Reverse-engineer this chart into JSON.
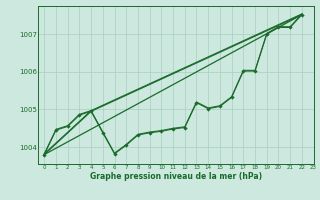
{
  "bg_color": "#cce8df",
  "line_color": "#1a6b2a",
  "grid_color": "#aacfbf",
  "xlabel": "Graphe pression niveau de la mer (hPa)",
  "ylabel_ticks": [
    1004,
    1005,
    1006,
    1007
  ],
  "xlim": [
    -0.5,
    23
  ],
  "ylim": [
    1003.55,
    1007.75
  ],
  "main_x": [
    0,
    1,
    2,
    3,
    4,
    5,
    6,
    7,
    8,
    9,
    10,
    11,
    12,
    13,
    14,
    15,
    16,
    17,
    18,
    19,
    20,
    21,
    22
  ],
  "main_y": [
    1003.8,
    1004.45,
    1004.55,
    1004.85,
    1004.95,
    1004.38,
    1003.82,
    1004.05,
    1004.32,
    1004.38,
    1004.42,
    1004.48,
    1004.52,
    1005.18,
    1005.02,
    1005.08,
    1005.32,
    1006.02,
    1006.02,
    1007.0,
    1007.18,
    1007.18,
    1007.52
  ],
  "line2_y": [
    1003.82,
    1004.47,
    1004.57,
    1004.87,
    1004.97,
    1004.4,
    1003.84,
    1004.07,
    1004.34,
    1004.4,
    1004.44,
    1004.5,
    1004.54,
    1005.2,
    1005.04,
    1005.1,
    1005.34,
    1006.04,
    1006.04,
    1007.02,
    1007.2,
    1007.2,
    1007.54
  ],
  "trend1_x": [
    0,
    22
  ],
  "trend1_y": [
    1003.8,
    1007.52
  ],
  "trend2_x": [
    0,
    4,
    22
  ],
  "trend2_y": [
    1003.8,
    1004.95,
    1007.52
  ],
  "trend3_x": [
    0,
    4,
    22
  ],
  "trend3_y": [
    1003.82,
    1004.97,
    1007.54
  ],
  "xticks": [
    0,
    1,
    2,
    3,
    4,
    5,
    6,
    7,
    8,
    9,
    10,
    11,
    12,
    13,
    14,
    15,
    16,
    17,
    18,
    19,
    20,
    21,
    22,
    23
  ]
}
